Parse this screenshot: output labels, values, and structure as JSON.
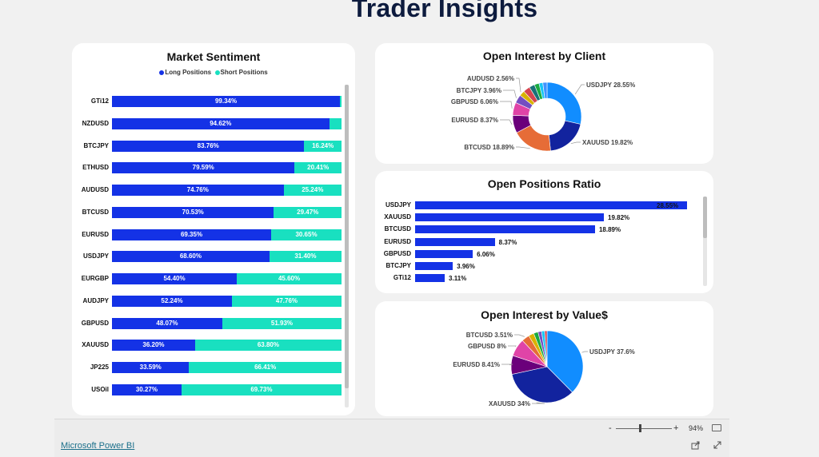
{
  "title": "Trader Insights",
  "sentiment": {
    "title": "Market Sentiment",
    "legend": {
      "long": "Long Positions",
      "short": "Short Positions"
    },
    "colors": {
      "long": "#1432e6",
      "short": "#19e0c0"
    },
    "rows": [
      {
        "label": "GTi12",
        "long": 99.34,
        "long_text": "99.34%",
        "short_text": ""
      },
      {
        "label": "NZDUSD",
        "long": 94.62,
        "long_text": "94.62%",
        "short_text": ""
      },
      {
        "label": "BTCJPY",
        "long": 83.76,
        "long_text": "83.76%",
        "short_text": "16.24%"
      },
      {
        "label": "ETHUSD",
        "long": 79.59,
        "long_text": "79.59%",
        "short_text": "20.41%"
      },
      {
        "label": "AUDUSD",
        "long": 74.76,
        "long_text": "74.76%",
        "short_text": "25.24%"
      },
      {
        "label": "BTCUSD",
        "long": 70.53,
        "long_text": "70.53%",
        "short_text": "29.47%"
      },
      {
        "label": "EURUSD",
        "long": 69.35,
        "long_text": "69.35%",
        "short_text": "30.65%"
      },
      {
        "label": "USDJPY",
        "long": 68.6,
        "long_text": "68.60%",
        "short_text": "31.40%"
      },
      {
        "label": "EURGBP",
        "long": 54.4,
        "long_text": "54.40%",
        "short_text": "45.60%"
      },
      {
        "label": "AUDJPY",
        "long": 52.24,
        "long_text": "52.24%",
        "short_text": "47.76%"
      },
      {
        "label": "GBPUSD",
        "long": 48.07,
        "long_text": "48.07%",
        "short_text": "51.93%"
      },
      {
        "label": "XAUUSD",
        "long": 36.2,
        "long_text": "36.20%",
        "short_text": "63.80%"
      },
      {
        "label": "JP225",
        "long": 33.59,
        "long_text": "33.59%",
        "short_text": "66.41%"
      },
      {
        "label": "USOil",
        "long": 30.27,
        "long_text": "30.27%",
        "short_text": "69.73%"
      }
    ]
  },
  "oi_client": {
    "title": "Open Interest by Client",
    "slices": [
      {
        "name": "USDJPY",
        "value": 28.55,
        "color": "#118dff",
        "label": "USDJPY 28.55%"
      },
      {
        "name": "XAUUSD",
        "value": 19.82,
        "color": "#12239e",
        "label": "XAUUSD 19.82%"
      },
      {
        "name": "BTCUSD",
        "value": 18.89,
        "color": "#e66c37",
        "label": "BTCUSD 18.89%"
      },
      {
        "name": "EURUSD",
        "value": 8.37,
        "color": "#6b007b",
        "label": "EURUSD 8.37%"
      },
      {
        "name": "GBPUSD",
        "value": 6.06,
        "color": "#e044a7",
        "label": "GBPUSD 6.06%"
      },
      {
        "name": "BTCJPY",
        "value": 3.96,
        "color": "#744ec2",
        "label": "BTCJPY 3.96%"
      },
      {
        "name": "AUDUSD",
        "value": 2.56,
        "color": "#d9b300",
        "label": "AUDUSD 2.56%"
      },
      {
        "name": "Other1",
        "value": 3.2,
        "color": "#d64550",
        "label": ""
      },
      {
        "name": "Other2",
        "value": 2.6,
        "color": "#197278",
        "label": ""
      },
      {
        "name": "Other3",
        "value": 2.2,
        "color": "#1aab40",
        "label": ""
      },
      {
        "name": "Other4",
        "value": 1.8,
        "color": "#15c6f4",
        "label": ""
      },
      {
        "name": "Other5",
        "value": 1.99,
        "color": "#4092ff",
        "label": ""
      }
    ]
  },
  "ratio": {
    "title": "Open Positions Ratio",
    "max": 28.55,
    "rows": [
      {
        "label": "USDJPY",
        "value": 28.55,
        "text": "28.55%"
      },
      {
        "label": "XAUUSD",
        "value": 19.82,
        "text": "19.82%"
      },
      {
        "label": "BTCUSD",
        "value": 18.89,
        "text": "18.89%"
      },
      {
        "label": "EURUSD",
        "value": 8.37,
        "text": "8.37%"
      },
      {
        "label": "GBPUSD",
        "value": 6.06,
        "text": "6.06%"
      },
      {
        "label": "BTCJPY",
        "value": 3.96,
        "text": "3.96%"
      },
      {
        "label": "GTi12",
        "value": 3.11,
        "text": "3.11%"
      }
    ]
  },
  "oi_value": {
    "title": "Open Interest by Value$",
    "slices": [
      {
        "name": "USDJPY",
        "value": 37.6,
        "color": "#118dff",
        "label": "USDJPY 37.6%"
      },
      {
        "name": "XAUUSD",
        "value": 34,
        "color": "#12239e",
        "label": "XAUUSD 34%"
      },
      {
        "name": "EURUSD",
        "value": 8.41,
        "color": "#6b007b",
        "label": "EURUSD 8.41%"
      },
      {
        "name": "GBPUSD",
        "value": 8,
        "color": "#e044a7",
        "label": "GBPUSD 8%"
      },
      {
        "name": "BTCUSD",
        "value": 3.51,
        "color": "#e66c37",
        "label": "BTCUSD 3.51%"
      },
      {
        "name": "Other1",
        "value": 2.4,
        "color": "#d9b300",
        "label": ""
      },
      {
        "name": "Other2",
        "value": 2.0,
        "color": "#1aab40",
        "label": ""
      },
      {
        "name": "Other3",
        "value": 1.6,
        "color": "#744ec2",
        "label": ""
      },
      {
        "name": "Other4",
        "value": 1.4,
        "color": "#15c6f4",
        "label": ""
      },
      {
        "name": "Other5",
        "value": 1.08,
        "color": "#d64550",
        "label": ""
      }
    ]
  },
  "footer": {
    "link": "Microsoft Power BI",
    "zoom_minus": "-",
    "zoom_plus": "+",
    "zoom_level": "94%"
  }
}
